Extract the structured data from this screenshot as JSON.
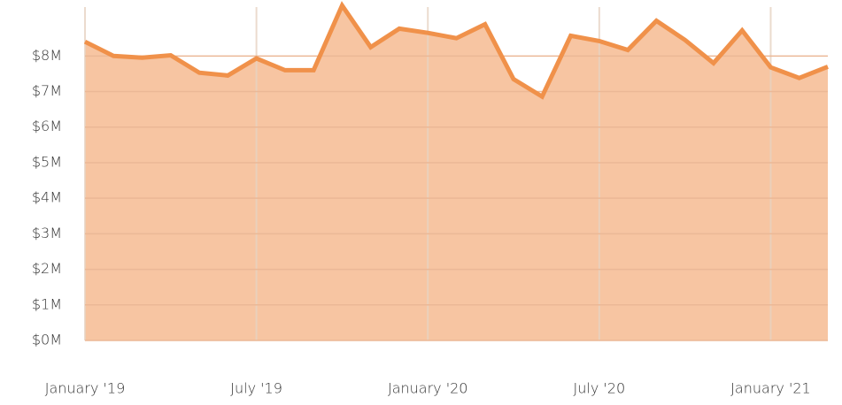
{
  "chart_data": {
    "type": "area",
    "x": [
      "2019-01",
      "2019-02",
      "2019-03",
      "2019-04",
      "2019-05",
      "2019-06",
      "2019-07",
      "2019-08",
      "2019-09",
      "2019-10",
      "2019-11",
      "2019-12",
      "2020-01",
      "2020-02",
      "2020-03",
      "2020-04",
      "2020-05",
      "2020-06",
      "2020-07",
      "2020-08",
      "2020-09",
      "2020-10",
      "2020-11",
      "2020-12",
      "2021-01",
      "2021-02",
      "2021-03"
    ],
    "values": [
      8400000,
      8000000,
      7950000,
      8020000,
      7530000,
      7450000,
      7930000,
      7600000,
      7600000,
      9420000,
      8250000,
      8770000,
      8650000,
      8500000,
      8890000,
      7350000,
      6860000,
      8570000,
      8420000,
      8170000,
      8990000,
      8450000,
      7800000,
      8720000,
      7680000,
      7380000,
      7700000
    ],
    "color": "#f0914a",
    "fill_color": "#f7c5a2",
    "xlim": [
      "2019-01",
      "2021-03"
    ],
    "xticks": [
      {
        "value": "2019-01",
        "label": "January '19"
      },
      {
        "value": "2019-07",
        "label": "July '19"
      },
      {
        "value": "2020-01",
        "label": "January '20"
      },
      {
        "value": "2020-07",
        "label": "July '20"
      },
      {
        "value": "2021-01",
        "label": "January '21"
      }
    ],
    "ylim": [
      0,
      9500000
    ],
    "yticks": [
      {
        "value": 0,
        "label": "$0M"
      },
      {
        "value": 1000000,
        "label": "$1M"
      },
      {
        "value": 2000000,
        "label": "$2M"
      },
      {
        "value": 3000000,
        "label": "$3M"
      },
      {
        "value": 4000000,
        "label": "$4M"
      },
      {
        "value": 5000000,
        "label": "$5M"
      },
      {
        "value": 6000000,
        "label": "$6M"
      },
      {
        "value": 7000000,
        "label": "$7M"
      },
      {
        "value": 8000000,
        "label": "$8M"
      }
    ],
    "grid": true
  }
}
